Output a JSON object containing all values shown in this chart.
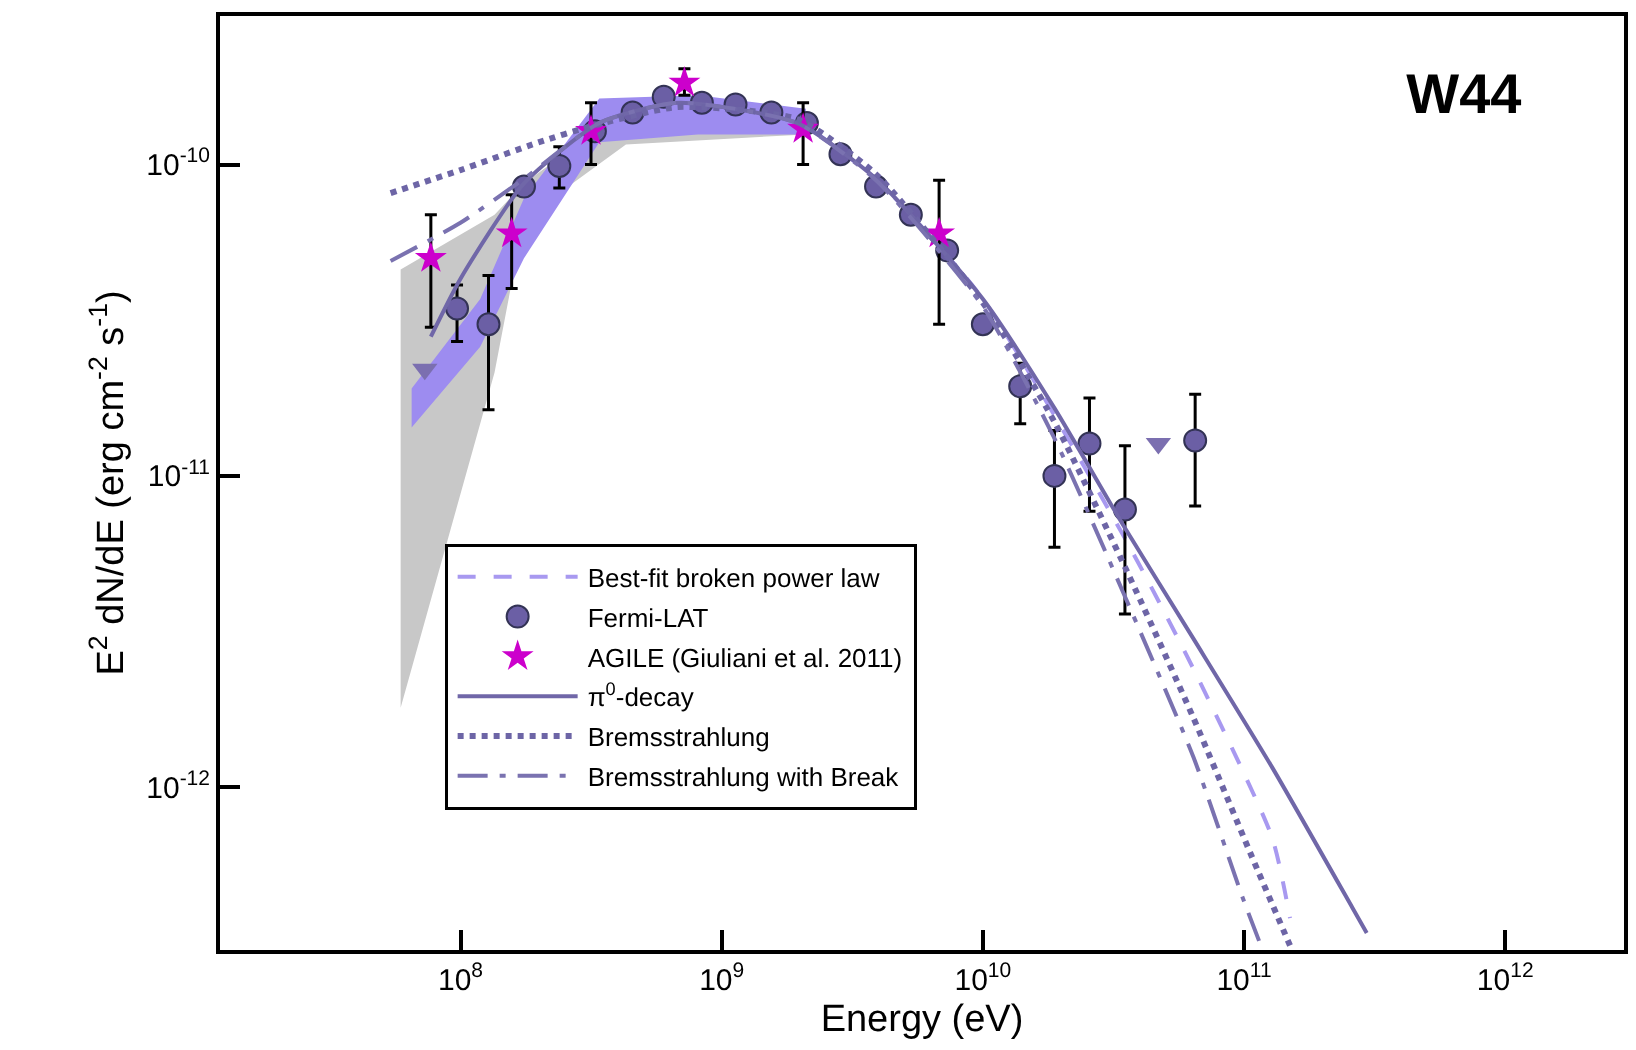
{
  "chart_data": {
    "type": "line",
    "title": "W44",
    "xlabel": "Energy (eV)",
    "ylabel": "E$^{2}$ dN/dE (erg cm$^{-2}$ s$^{-1}$)",
    "log": "xy",
    "legend": "bottom left",
    "xlim": [
      12000000.0,
      2850000000000.0
    ],
    "ylim": [
      3e-13,
      3e-10
    ],
    "xticks": [
      {
        "value": 100000000.0,
        "label": "10$^{8}$"
      },
      {
        "value": 1000000000.0,
        "label": "10$^{9}$"
      },
      {
        "value": 10000000000.0,
        "label": "10$^{10}$"
      },
      {
        "value": 100000000000.0,
        "label": "10$^{11}$"
      },
      {
        "value": 1000000000000.0,
        "label": "10$^{12}$"
      }
    ],
    "yticks": [
      {
        "value": 1e-12,
        "label": "10$^{-12}$"
      },
      {
        "value": 1e-11,
        "label": "10$^{-11}$"
      },
      {
        "value": 1e-10,
        "label": "10$^{-10}$"
      }
    ],
    "series": [
      {
        "color": "#c8c8c8",
        "x": [
          59000000.0,
          135000000.0,
          175000000.0,
          430000000.0,
          2100000000.0
        ],
        "values": [
          null,
          null,
          null,
          null,
          null
        ],
        "lower": [
          1.8e-12,
          2.15e-11,
          6.7e-11,
          1.16e-10,
          1.25e-10
        ],
        "upper": [
          4.6e-11,
          6.9e-11,
          8.7e-11,
          1.51e-10,
          1.51e-10
        ]
      },
      {
        "color": "#9d8cf0",
        "x": [
          65000000.0,
          119000000.0,
          175000000.0,
          340000000.0,
          810000000.0,
          2100000000.0
        ],
        "values": [
          null,
          null,
          null,
          null,
          null,
          null
        ],
        "lower": [
          1.43e-11,
          2.6e-11,
          5e-11,
          1.18e-10,
          1.25e-10,
          1.25e-10
        ],
        "upper": [
          1.91e-11,
          3.7e-11,
          7.8e-11,
          1.63e-10,
          1.67e-10,
          1.51e-10
        ]
      },
      {
        "name": "Best-fit broken power law",
        "color": "#a899f0",
        "line_style": "dashed",
        "marker": "none",
        "x": [
          2200000000.0,
          4000000000.0,
          10000000000.0,
          35000000000.0,
          64000000000.0,
          128000000000.0,
          150000000000.0
        ],
        "values": [
          1.3e-10,
          8.8e-11,
          3.7e-11,
          6.3e-12,
          2.4e-12,
          6.9e-13,
          3.8e-13
        ]
      },
      {
        "type": "scatter",
        "name": "Fermi-LAT",
        "color": "#6b5fa5",
        "marker": "circle",
        "x": [
          97000000.0,
          128000000.0,
          175000000.0,
          239000000.0,
          327000000.0,
          456000000.0,
          600000000.0,
          840000000.0,
          1130000000.0,
          1550000000.0,
          2120000000.0,
          2850000000.0,
          3900000000.0,
          5300000000.0,
          7300000000.0,
          10000000000.0,
          13900000000.0,
          18800000000.0,
          25600000000.0,
          35000000000.0,
          65000000000.0
        ],
        "values": [
          3.45e-11,
          3.07e-11,
          8.5e-11,
          9.9e-11,
          1.28e-10,
          1.47e-10,
          1.65e-10,
          1.58e-10,
          1.56e-10,
          1.47e-10,
          1.36e-10,
          1.08e-10,
          8.5e-11,
          6.9e-11,
          5.3e-11,
          3.07e-11,
          1.94e-11,
          1e-11,
          1.27e-11,
          7.8e-12,
          1.3e-11
        ],
        "errors": [
          [
            2.7e-11,
            4.1e-11
          ],
          [
            1.63e-11,
            4.4e-11
          ],
          null,
          [
            8.4e-11,
            1.14e-10
          ],
          null,
          null,
          null,
          null,
          null,
          null,
          null,
          null,
          null,
          null,
          null,
          null,
          [
            1.47e-11,
            2.3e-11
          ],
          [
            5.9e-12,
            1.4e-11
          ],
          [
            7.7e-12,
            1.78e-11
          ],
          [
            3.6e-12,
            1.25e-11
          ],
          [
            8e-12,
            1.83e-11
          ]
        ]
      },
      {
        "type": "scatter",
        "color": "#7b6fb0",
        "marker": "triangle",
        "x": [
          73000000.0,
          47000000000.0
        ],
        "values": [
          2.2e-11,
          1.27e-11
        ]
      },
      {
        "type": "scatter",
        "name": "AGILE (Giuliani et al. 2011)",
        "color": "#cc00cc",
        "marker": "star",
        "x": [
          77000000.0,
          157000000.0,
          316000000.0,
          720000000.0,
          2050000000.0,
          6800000000.0
        ],
        "values": [
          5e-11,
          6e-11,
          1.28e-10,
          1.83e-10,
          1.3e-10,
          6e-11
        ],
        "errors": [
          [
            3e-11,
            6.9e-11
          ],
          [
            4e-11,
            8e-11
          ],
          [
            1e-10,
            1.58e-10
          ],
          [
            1.67e-10,
            2.03e-10
          ],
          [
            1e-10,
            1.58e-10
          ],
          [
            3.07e-11,
            8.9e-11
          ]
        ]
      },
      {
        "name": "π$^{0}$-decay",
        "color": "#7067a8",
        "line_style": "solid",
        "marker": "none",
        "x": [
          77000000.0,
          100000000.0,
          175000000.0,
          340000000.0,
          680000000.0,
          1940000000.0,
          3900000000.0,
          10000000000.0,
          18800000000.0,
          35000000000.0,
          64000000000.0,
          128000000000.0,
          260000000000.0,
          295000000000.0
        ],
        "values": [
          2.8e-11,
          4.3e-11,
          8.7e-11,
          1.36e-10,
          1.58e-10,
          1.36e-10,
          9e-11,
          3.7e-11,
          1.65e-11,
          6.8e-12,
          3e-12,
          1.16e-12,
          4.1e-13,
          3.4e-13
        ]
      },
      {
        "name": "Bremsstrahlung",
        "color": "#6d65a6",
        "line_style": "dotted",
        "marker": "none",
        "x": [
          54000000.0,
          100000000.0,
          200000000.0,
          310000000.0,
          680000000.0,
          1940000000.0,
          3900000000.0,
          10000000000.0,
          18800000000.0,
          35000000000.0,
          64000000000.0,
          107000000000.0,
          150000000000.0
        ],
        "values": [
          8.1e-11,
          9.6e-11,
          1.18e-10,
          1.32e-10,
          1.53e-10,
          1.4e-10,
          9.3e-11,
          3.6e-11,
          1.49e-11,
          5.1e-12,
          1.67e-12,
          6e-13,
          3.1e-13
        ]
      },
      {
        "name": "Bremsstrahlung with Break",
        "color": "#7a72b0",
        "line_style": "dashdot",
        "marker": "none",
        "x": [
          54000000.0,
          100000000.0,
          175000000.0,
          340000000.0,
          680000000.0,
          1940000000.0,
          3900000000.0,
          10000000000.0,
          18800000000.0,
          35000000000.0,
          64000000000.0,
          99000000000.0,
          116000000000.0
        ],
        "values": [
          4.9e-11,
          6.5e-11,
          9e-11,
          1.36e-10,
          1.58e-10,
          1.36e-10,
          8.9e-11,
          3.5e-11,
          1.32e-11,
          4.1e-12,
          1.25e-12,
          4.4e-13,
          3.1e-13
        ]
      }
    ]
  }
}
